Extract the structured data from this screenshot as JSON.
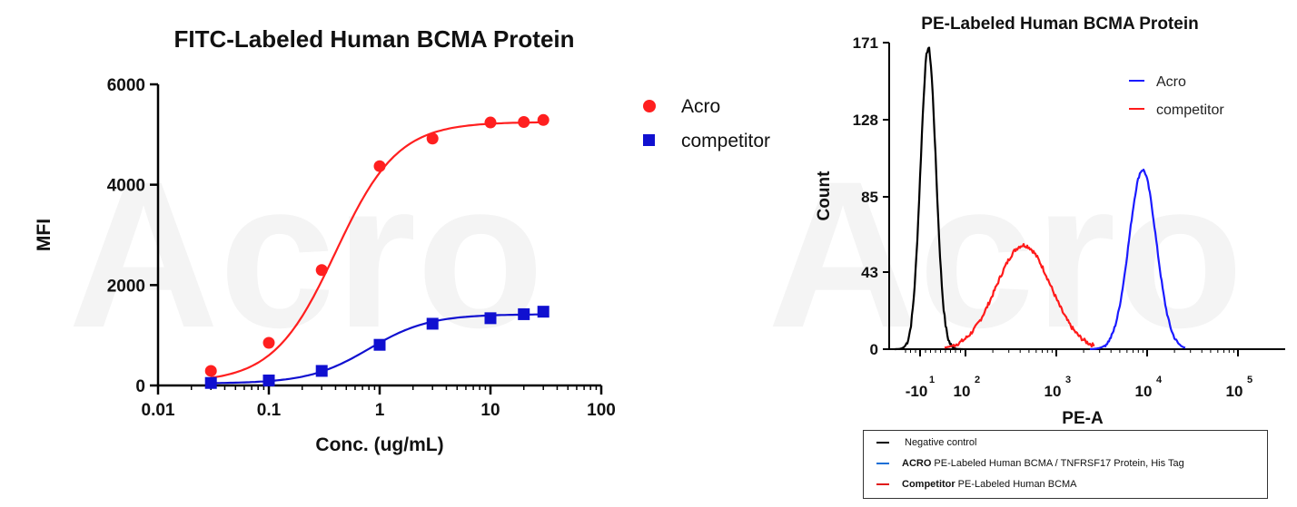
{
  "chart_data": [
    {
      "type": "scatter",
      "title": "FITC-Labeled Human BCMA Protein",
      "xlabel": "Conc. (ug/mL)",
      "ylabel": "MFI",
      "xscale": "log",
      "xlim": [
        0.01,
        100
      ],
      "ylim": [
        0,
        6000
      ],
      "xticks": [
        0.01,
        0.1,
        1,
        10,
        100
      ],
      "xtick_labels": [
        "0.01",
        "0.1",
        "1",
        "10",
        "100"
      ],
      "yticks": [
        0,
        2000,
        4000,
        6000
      ],
      "ytick_labels": [
        "0",
        "2000",
        "4000",
        "6000"
      ],
      "legend_position": "top-right",
      "fit_curves": true,
      "series": [
        {
          "name": "Acro",
          "marker": "circle",
          "color": "#ff1f1f",
          "x": [
            0.03,
            0.1,
            0.3,
            1,
            3,
            10,
            20,
            30
          ],
          "y": [
            290,
            850,
            2300,
            4370,
            4920,
            5240,
            5250,
            5290
          ]
        },
        {
          "name": "competitor",
          "marker": "square",
          "color": "#1010d0",
          "x": [
            0.03,
            0.1,
            0.3,
            1,
            3,
            10,
            20,
            30
          ],
          "y": [
            50,
            100,
            290,
            810,
            1230,
            1340,
            1420,
            1470
          ]
        }
      ]
    },
    {
      "type": "line",
      "title": "PE-Labeled Human BCMA Protein",
      "xlabel": "PE-A",
      "ylabel": "Count",
      "xscale": "biexponential",
      "ylim": [
        0,
        171
      ],
      "yticks": [
        0,
        43,
        85,
        128,
        171
      ],
      "ytick_labels": [
        "0",
        "43",
        "85",
        "128",
        "171"
      ],
      "xtick_labels": [
        "-10",
        "10",
        "10",
        "10",
        "10"
      ],
      "xtick_exponents": [
        "1",
        "2",
        "3",
        "4",
        "5"
      ],
      "legend_position": "top-right",
      "series": [
        {
          "name": "Acro",
          "color": "#1a1aff"
        },
        {
          "name": "competitor",
          "color": "#ff1a1a"
        }
      ],
      "bottom_legend": [
        {
          "color": "#000000",
          "bold": "",
          "text": "Negative control"
        },
        {
          "color": "#1a6fd6",
          "bold": "ACRO",
          "text": "PE-Labeled Human BCMA / TNFRSF17 Protein, His Tag"
        },
        {
          "color": "#e01b1b",
          "bold": "Competitor",
          "text": "PE-Labeled Human BCMA"
        }
      ]
    }
  ]
}
